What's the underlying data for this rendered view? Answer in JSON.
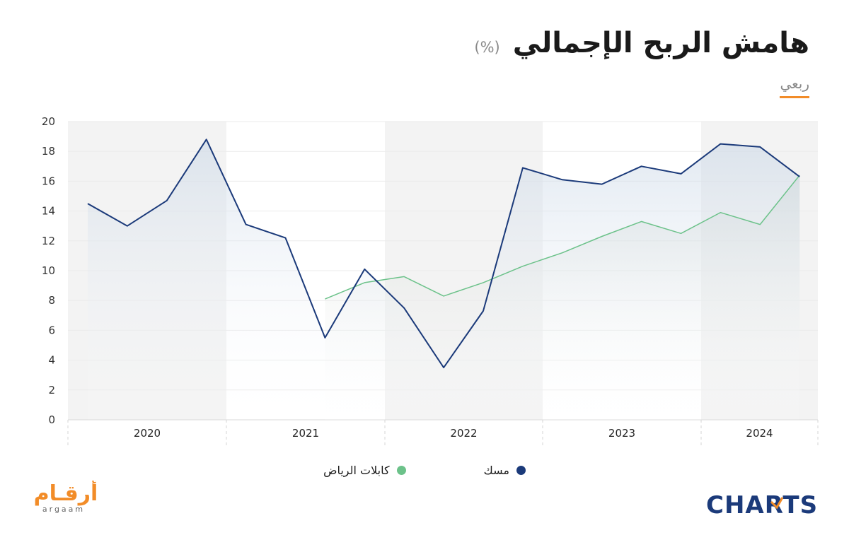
{
  "header": {
    "title": "هامش الربح الإجمالي",
    "unit": "(%)",
    "period_tab": "ربعي"
  },
  "colors": {
    "misk": "#1b3a7a",
    "riyadh_cables": "#6cc28a",
    "accent": "#f28c28",
    "band": "#f3f3f3"
  },
  "chart_data": {
    "type": "line",
    "y_ticks": [
      "0",
      "2",
      "4",
      "6",
      "8",
      "10",
      "12",
      "14",
      "16",
      "18",
      "20"
    ],
    "ylim": [
      0,
      20
    ],
    "year_labels": [
      "2020",
      "2021",
      "2022",
      "2023",
      "2024"
    ],
    "quarters": [
      "2020 Q1",
      "2020 Q2",
      "2020 Q3",
      "2020 Q4",
      "2021 Q1",
      "2021 Q2",
      "2021 Q3",
      "2021 Q4",
      "2022 Q1",
      "2022 Q2",
      "2022 Q3",
      "2022 Q4",
      "2023 Q1",
      "2023 Q2",
      "2023 Q3",
      "2023 Q4",
      "2024 Q1",
      "2024 Q2",
      "2024 Q3"
    ],
    "grid": true,
    "series": [
      {
        "name": "مسك",
        "color": "#1b3a7a",
        "values": [
          14.5,
          13.0,
          14.7,
          18.8,
          13.1,
          12.2,
          5.5,
          10.1,
          7.5,
          3.5,
          7.3,
          16.9,
          16.1,
          15.8,
          17.0,
          16.5,
          18.5,
          18.3,
          16.3
        ]
      },
      {
        "name": "كابلات الرياض",
        "color": "#6cc28a",
        "values": [
          null,
          null,
          null,
          null,
          null,
          null,
          8.1,
          9.2,
          9.6,
          8.3,
          9.2,
          10.3,
          11.2,
          12.3,
          13.3,
          12.5,
          13.9,
          13.1,
          16.4
        ]
      }
    ]
  },
  "legend": [
    {
      "label": "مسك",
      "color": "#1b3a7a"
    },
    {
      "label": "كابلات الرياض",
      "color": "#6cc28a"
    }
  ],
  "logos": {
    "argaam_ar": "أرقـام",
    "argaam_en": "argaam",
    "charts": "CHARTS"
  }
}
